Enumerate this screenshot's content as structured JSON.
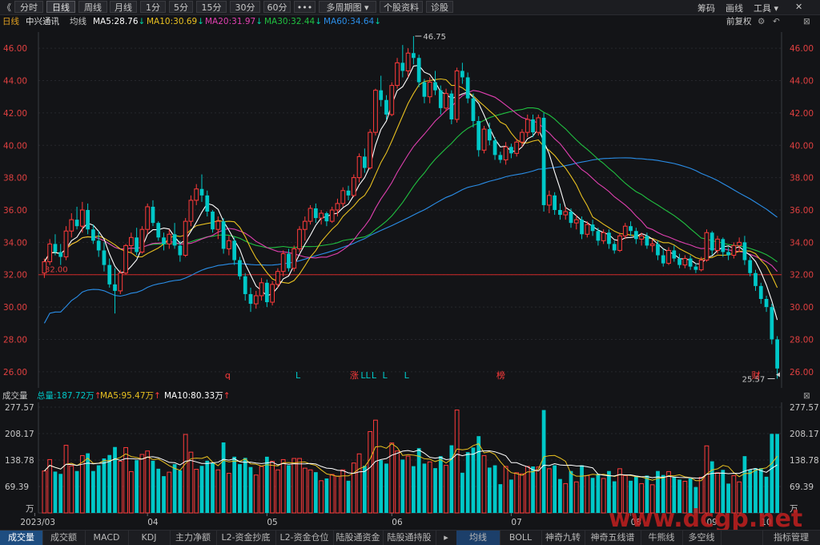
{
  "toolbar": {
    "back_glyph": "《",
    "tabs": [
      {
        "label": "分时",
        "active": false
      },
      {
        "label": "日线",
        "active": true
      },
      {
        "label": "周线",
        "active": false
      },
      {
        "label": "月线",
        "active": false
      },
      {
        "label": "1分",
        "active": false
      },
      {
        "label": "5分",
        "active": false
      },
      {
        "label": "15分",
        "active": false
      },
      {
        "label": "30分",
        "active": false
      },
      {
        "label": "60分",
        "active": false
      },
      {
        "label": "•••",
        "active": false
      },
      {
        "label": "多周期图 ▾",
        "active": false
      },
      {
        "label": "个股资料",
        "active": false
      },
      {
        "label": "诊股",
        "active": false
      }
    ],
    "right": {
      "chips": "筹码",
      "draw": "画线",
      "tools": "工具 ▾",
      "close": "✕"
    }
  },
  "info": {
    "period": "日线",
    "stock_name": "中兴通讯",
    "ma_label": "均线",
    "ma5": "MA5:28.76",
    "ma10": "MA10:30.69",
    "ma20": "MA20:31.97",
    "ma30": "MA30:32.44",
    "ma60": "MA60:34.64",
    "adjust": "前复权"
  },
  "colors": {
    "up": "#ff3b3b",
    "down": "#00c8c8",
    "ma5": "#ffffff",
    "ma10": "#e8c020",
    "ma20": "#e040b0",
    "ma30": "#20c040",
    "ma60": "#2a8ee8"
  },
  "price_axis": {
    "ticks": [
      "46.00",
      "44.00",
      "42.00",
      "40.00",
      "38.00",
      "36.00",
      "34.00",
      "32.00",
      "30.00",
      "28.00",
      "26.00"
    ],
    "min": 25.0,
    "max": 47.0
  },
  "annotations": {
    "high": "46.75",
    "low": "25.57",
    "ref_line": "32.00",
    "markers": [
      "q",
      "L",
      "涨",
      "LL",
      "L",
      "L",
      "L",
      "榜",
      "财"
    ]
  },
  "volume": {
    "title": "成交量",
    "total": "总量:187.72万",
    "ma5": "MA5:95.47万",
    "ma10": "MA10:80.33万",
    "ticks": [
      "277.57",
      "208.17",
      "138.78",
      "69.39"
    ],
    "unit": "万"
  },
  "date_axis": [
    "2023/03",
    "04",
    "05",
    "06",
    "07",
    "08",
    "09",
    "10"
  ],
  "bottom_tabs": [
    "成交量",
    "成交额",
    "MACD",
    "KDJ",
    "主力净额",
    "L2-资金抄底",
    "L2-资金仓位",
    "陆股通资金",
    "陆股通持股",
    "▸",
    "均线",
    "BOLL",
    "神奇九转",
    "神奇五线谱",
    "牛熊线",
    "多空线",
    "",
    "指标管理"
  ],
  "watermark": "www.dcgp.net",
  "chart_data": {
    "type": "candlestick",
    "y_range": [
      25.0,
      47.0
    ],
    "ohlc": [
      [
        32.1,
        33.0,
        31.8,
        32.8
      ],
      [
        32.8,
        34.2,
        32.6,
        33.9
      ],
      [
        33.9,
        34.5,
        33.2,
        33.4
      ],
      [
        33.4,
        33.9,
        32.6,
        33.1
      ],
      [
        33.1,
        35.0,
        32.9,
        34.7
      ],
      [
        34.7,
        35.8,
        34.3,
        35.4
      ],
      [
        35.4,
        36.2,
        34.8,
        35.0
      ],
      [
        35.0,
        36.5,
        34.6,
        36.0
      ],
      [
        36.0,
        36.4,
        34.5,
        34.8
      ],
      [
        34.8,
        35.1,
        33.9,
        34.1
      ],
      [
        34.1,
        34.7,
        33.1,
        33.5
      ],
      [
        33.5,
        34.0,
        32.2,
        32.6
      ],
      [
        32.6,
        33.0,
        31.2,
        31.4
      ],
      [
        31.4,
        32.4,
        29.6,
        31.0
      ],
      [
        31.0,
        32.3,
        30.8,
        32.1
      ],
      [
        32.1,
        33.9,
        32.0,
        33.8
      ],
      [
        33.8,
        34.6,
        33.3,
        34.3
      ],
      [
        34.3,
        34.9,
        33.2,
        33.4
      ],
      [
        33.4,
        35.0,
        33.3,
        34.8
      ],
      [
        34.8,
        36.4,
        34.5,
        36.2
      ],
      [
        36.2,
        36.6,
        35.0,
        35.2
      ],
      [
        35.2,
        35.3,
        34.1,
        34.3
      ],
      [
        34.3,
        34.6,
        33.5,
        33.9
      ],
      [
        33.9,
        34.8,
        33.6,
        34.5
      ],
      [
        34.5,
        35.2,
        33.6,
        33.8
      ],
      [
        33.8,
        34.1,
        32.8,
        33.2
      ],
      [
        33.2,
        35.5,
        33.1,
        35.3
      ],
      [
        35.3,
        36.9,
        35.0,
        36.6
      ],
      [
        36.6,
        37.6,
        36.3,
        37.3
      ],
      [
        37.3,
        38.2,
        36.5,
        36.9
      ],
      [
        36.9,
        37.2,
        35.6,
        35.9
      ],
      [
        35.9,
        36.0,
        34.6,
        34.8
      ],
      [
        34.8,
        35.6,
        34.2,
        35.3
      ],
      [
        35.3,
        35.5,
        33.3,
        33.6
      ],
      [
        33.6,
        34.4,
        33.2,
        34.1
      ],
      [
        34.1,
        34.3,
        32.6,
        32.9
      ],
      [
        32.9,
        33.1,
        31.7,
        31.9
      ],
      [
        31.9,
        32.1,
        30.4,
        30.8
      ],
      [
        30.8,
        31.2,
        29.7,
        30.2
      ],
      [
        30.2,
        31.0,
        29.9,
        30.7
      ],
      [
        30.7,
        31.8,
        30.4,
        31.5
      ],
      [
        31.5,
        31.7,
        30.0,
        30.3
      ],
      [
        30.3,
        31.6,
        30.1,
        31.4
      ],
      [
        31.4,
        32.4,
        31.2,
        32.2
      ],
      [
        32.2,
        33.5,
        31.9,
        33.3
      ],
      [
        33.3,
        33.6,
        32.2,
        32.4
      ],
      [
        32.4,
        33.8,
        32.2,
        33.6
      ],
      [
        33.6,
        35.0,
        33.4,
        34.8
      ],
      [
        34.8,
        35.6,
        34.1,
        35.3
      ],
      [
        35.3,
        36.3,
        35.1,
        36.1
      ],
      [
        36.1,
        36.4,
        35.2,
        35.5
      ],
      [
        35.5,
        36.0,
        35.1,
        35.8
      ],
      [
        35.8,
        35.9,
        35.0,
        35.3
      ],
      [
        35.3,
        36.2,
        35.2,
        36.0
      ],
      [
        36.0,
        36.7,
        35.6,
        36.4
      ],
      [
        36.4,
        37.4,
        36.2,
        37.2
      ],
      [
        37.2,
        37.5,
        36.6,
        36.9
      ],
      [
        36.9,
        38.2,
        36.8,
        38.0
      ],
      [
        38.0,
        39.5,
        37.7,
        39.3
      ],
      [
        39.3,
        39.8,
        38.3,
        38.6
      ],
      [
        38.6,
        41.0,
        38.5,
        40.8
      ],
      [
        40.8,
        43.5,
        40.6,
        43.4
      ],
      [
        43.4,
        44.3,
        42.4,
        42.8
      ],
      [
        42.8,
        43.1,
        41.6,
        41.9
      ],
      [
        41.9,
        43.9,
        41.8,
        43.7
      ],
      [
        43.7,
        45.4,
        43.5,
        45.1
      ],
      [
        45.1,
        46.2,
        44.2,
        44.6
      ],
      [
        44.6,
        46.0,
        44.2,
        45.7
      ],
      [
        45.7,
        46.75,
        45.0,
        45.4
      ],
      [
        45.4,
        45.6,
        43.6,
        43.9
      ],
      [
        43.9,
        44.1,
        42.6,
        43.0
      ],
      [
        43.0,
        44.2,
        42.6,
        43.9
      ],
      [
        43.9,
        44.6,
        43.1,
        43.4
      ],
      [
        43.4,
        43.7,
        41.9,
        42.3
      ],
      [
        42.3,
        43.5,
        42.1,
        43.2
      ],
      [
        43.2,
        43.4,
        41.3,
        41.6
      ],
      [
        41.6,
        44.8,
        41.4,
        44.6
      ],
      [
        44.6,
        45.1,
        43.8,
        44.2
      ],
      [
        44.2,
        44.5,
        42.6,
        42.9
      ],
      [
        42.9,
        43.2,
        41.1,
        41.5
      ],
      [
        41.5,
        41.8,
        39.3,
        39.7
      ],
      [
        39.7,
        41.2,
        39.5,
        41.0
      ],
      [
        41.0,
        41.4,
        40.0,
        40.3
      ],
      [
        40.3,
        40.5,
        39.1,
        39.4
      ],
      [
        39.4,
        39.6,
        38.9,
        39.1
      ],
      [
        39.1,
        40.2,
        38.8,
        39.9
      ],
      [
        39.9,
        40.1,
        39.2,
        39.5
      ],
      [
        39.5,
        40.4,
        39.3,
        40.2
      ],
      [
        40.2,
        41.0,
        39.9,
        40.8
      ],
      [
        40.8,
        41.9,
        40.5,
        41.6
      ],
      [
        41.6,
        41.9,
        40.5,
        40.8
      ],
      [
        40.8,
        41.9,
        40.6,
        41.7
      ],
      [
        41.7,
        42.0,
        35.9,
        36.3
      ],
      [
        36.3,
        37.2,
        35.8,
        36.9
      ],
      [
        36.9,
        37.1,
        35.7,
        36.0
      ],
      [
        36.0,
        36.4,
        35.4,
        35.7
      ],
      [
        35.7,
        36.2,
        35.4,
        35.9
      ],
      [
        35.9,
        36.1,
        34.9,
        35.2
      ],
      [
        35.2,
        35.7,
        34.8,
        35.4
      ],
      [
        35.4,
        35.6,
        34.2,
        34.5
      ],
      [
        34.5,
        35.3,
        34.3,
        35.1
      ],
      [
        35.1,
        35.4,
        34.4,
        34.7
      ],
      [
        34.7,
        34.9,
        33.8,
        34.1
      ],
      [
        34.1,
        34.8,
        33.9,
        34.6
      ],
      [
        34.6,
        34.8,
        33.6,
        33.9
      ],
      [
        33.9,
        34.1,
        33.3,
        33.5
      ],
      [
        33.5,
        34.6,
        33.4,
        34.4
      ],
      [
        34.4,
        35.2,
        34.2,
        35.0
      ],
      [
        35.0,
        35.3,
        34.4,
        34.7
      ],
      [
        34.7,
        34.9,
        33.9,
        34.2
      ],
      [
        34.2,
        34.6,
        33.8,
        34.4
      ],
      [
        34.4,
        34.6,
        33.6,
        33.8
      ],
      [
        33.8,
        34.2,
        33.4,
        33.9
      ],
      [
        33.9,
        34.1,
        32.9,
        33.2
      ],
      [
        33.2,
        33.6,
        32.5,
        32.7
      ],
      [
        32.7,
        33.7,
        32.6,
        33.5
      ],
      [
        33.5,
        33.8,
        32.8,
        33.0
      ],
      [
        33.0,
        33.3,
        32.4,
        32.6
      ],
      [
        32.6,
        33.2,
        32.4,
        33.0
      ],
      [
        33.0,
        33.2,
        32.3,
        32.5
      ],
      [
        32.5,
        32.7,
        32.1,
        32.3
      ],
      [
        32.3,
        33.1,
        32.2,
        32.9
      ],
      [
        32.9,
        34.8,
        32.8,
        34.6
      ],
      [
        34.6,
        34.7,
        33.2,
        33.5
      ],
      [
        33.5,
        34.4,
        33.3,
        34.2
      ],
      [
        34.2,
        34.3,
        33.1,
        33.4
      ],
      [
        33.4,
        33.7,
        32.9,
        33.2
      ],
      [
        33.2,
        34.0,
        33.0,
        33.8
      ],
      [
        33.8,
        34.3,
        33.4,
        34.0
      ],
      [
        34.0,
        34.4,
        32.6,
        32.9
      ],
      [
        32.9,
        33.1,
        31.9,
        32.1
      ],
      [
        32.1,
        32.3,
        31.0,
        31.3
      ],
      [
        31.3,
        31.5,
        30.2,
        30.5
      ],
      [
        30.5,
        30.7,
        29.7,
        30.0
      ],
      [
        30.0,
        30.2,
        27.7,
        28.0
      ],
      [
        28.0,
        28.2,
        25.57,
        26.2
      ]
    ],
    "volume_range": [
      0,
      277.57
    ]
  }
}
